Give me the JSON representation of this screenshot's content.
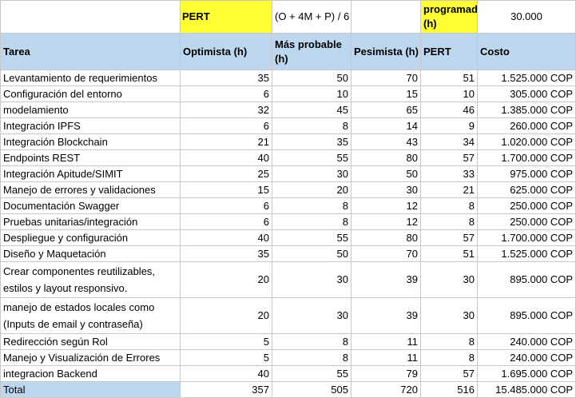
{
  "top": {
    "pert_label": "PERT",
    "formula": "(O + 4M + P) / 6",
    "programmer_label": "programador (h)",
    "programmer_rate": "30.000"
  },
  "headers": [
    "Tarea",
    "Optimista (h)",
    "Más probable (h)",
    "Pesimista (h)",
    "PERT",
    "Costo"
  ],
  "rows": [
    {
      "tarea": "Levantamiento de requerimientos",
      "o": "35",
      "m": "50",
      "p": "70",
      "pert": "51",
      "costo": "1.525.000 COP"
    },
    {
      "tarea": "Configuración del entorno",
      "o": "6",
      "m": "10",
      "p": "15",
      "pert": "10",
      "costo": "305.000 COP"
    },
    {
      "tarea": "modelamiento",
      "o": "32",
      "m": "45",
      "p": "65",
      "pert": "46",
      "costo": "1.385.000 COP"
    },
    {
      "tarea": "Integración IPFS",
      "o": "6",
      "m": "8",
      "p": "14",
      "pert": "9",
      "costo": "260.000 COP"
    },
    {
      "tarea": "Integración Blockchain",
      "o": "21",
      "m": "35",
      "p": "43",
      "pert": "34",
      "costo": "1.020.000 COP"
    },
    {
      "tarea": "Endpoints REST",
      "o": "40",
      "m": "55",
      "p": "80",
      "pert": "57",
      "costo": "1.700.000 COP"
    },
    {
      "tarea": "Integración Apitude/SIMIT",
      "o": "25",
      "m": "30",
      "p": "50",
      "pert": "33",
      "costo": "975.000 COP"
    },
    {
      "tarea": "Manejo de errores y validaciones",
      "o": "15",
      "m": "20",
      "p": "30",
      "pert": "21",
      "costo": "625.000 COP"
    },
    {
      "tarea": "Documentación Swagger",
      "o": "6",
      "m": "8",
      "p": "12",
      "pert": "8",
      "costo": "250.000 COP"
    },
    {
      "tarea": "Pruebas unitarias/integración",
      "o": "6",
      "m": "8",
      "p": "12",
      "pert": "8",
      "costo": "250.000 COP"
    },
    {
      "tarea": "Despliegue y configuración",
      "o": "40",
      "m": "55",
      "p": "80",
      "pert": "57",
      "costo": "1.700.000 COP"
    },
    {
      "tarea": "Diseño y Maquetación",
      "o": "35",
      "m": "50",
      "p": "70",
      "pert": "51",
      "costo": "1.525.000 COP"
    },
    {
      "tarea": "Crear componentes reutilizables, estilos y layout responsivo.",
      "o": "20",
      "m": "30",
      "p": "39",
      "pert": "30",
      "costo": "895.000 COP",
      "tall": true
    },
    {
      "tarea": "manejo de estados locales como (Inputs de email y contraseña)",
      "o": "20",
      "m": "30",
      "p": "39",
      "pert": "30",
      "costo": "895.000 COP",
      "tall": true
    },
    {
      "tarea": "Redirección según Rol",
      "o": "5",
      "m": "8",
      "p": "11",
      "pert": "8",
      "costo": "240.000 COP"
    },
    {
      "tarea": "Manejo y Visualización de Errores",
      "o": "5",
      "m": "8",
      "p": "11",
      "pert": "8",
      "costo": "240.000 COP"
    },
    {
      "tarea": "integracion Backend",
      "o": "40",
      "m": "55",
      "p": "79",
      "pert": "57",
      "costo": "1.695.000 COP"
    }
  ],
  "total": {
    "label": "Total",
    "o": "357",
    "m": "505",
    "p": "720",
    "pert": "516",
    "costo": "15.485.000 COP"
  }
}
